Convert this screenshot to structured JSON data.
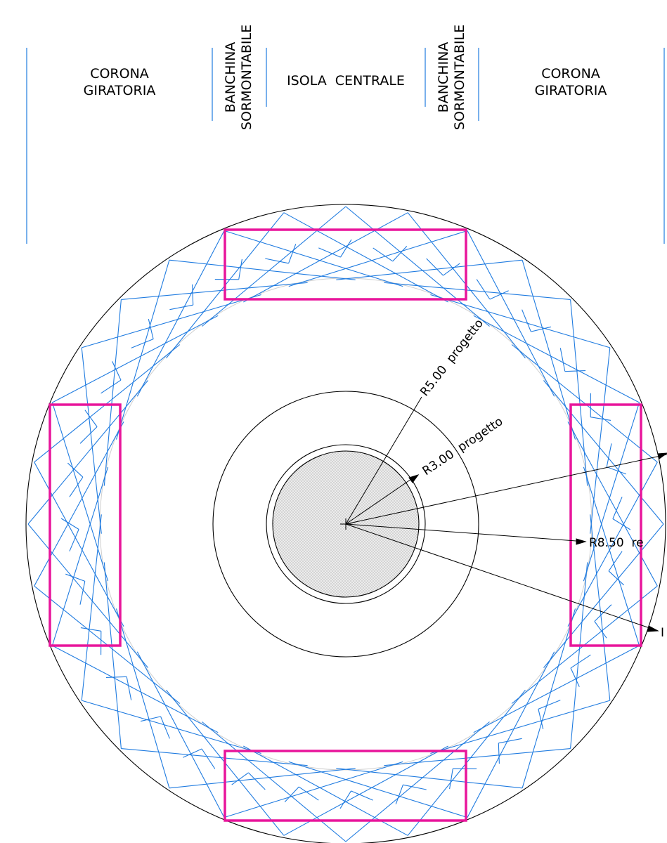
{
  "colors": {
    "line": "#000000",
    "blue": "#1f7be0",
    "magenta": "#e8159b",
    "hatch": "#d9d9d9"
  },
  "header": {
    "corona_left": [
      "CORONA",
      "GIRATORIA"
    ],
    "banchina_left": [
      "BANCHINA",
      "SORMONTABILE"
    ],
    "isola": "ISOLA  CENTRALE",
    "banchina_right": [
      "BANCHINA",
      "SORMONTABILE"
    ],
    "corona_right": [
      "CORONA",
      "GIRATORIA"
    ]
  },
  "dimensions": {
    "r5": "R5.00  progetto",
    "r3": "R3.00  progetto",
    "r850": "R8.50  re",
    "cut": "I"
  }
}
